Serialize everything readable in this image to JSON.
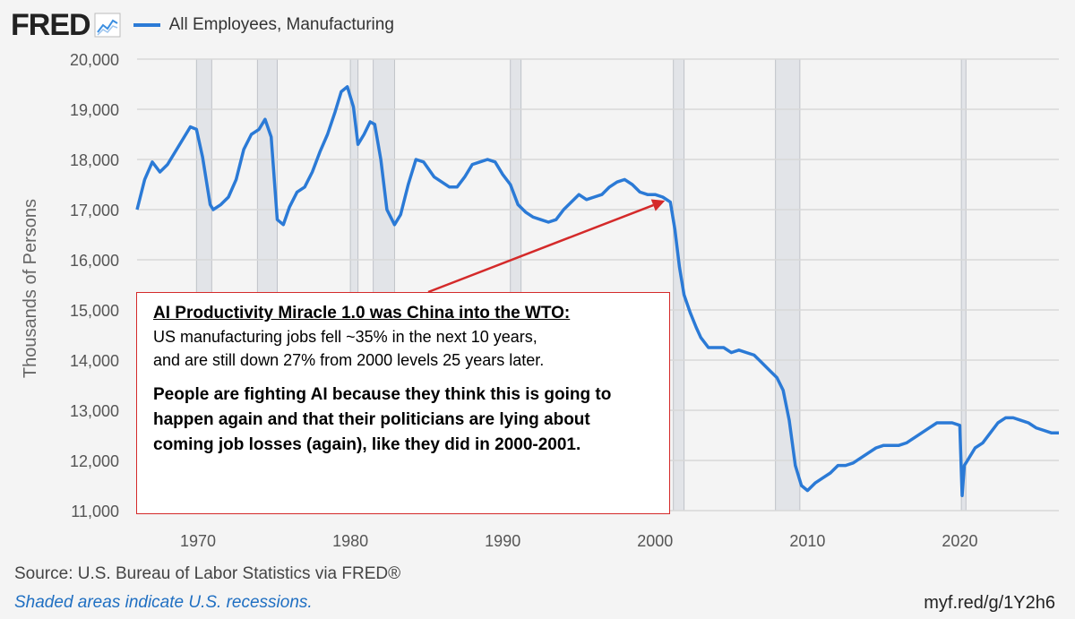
{
  "header": {
    "logo": "FRED",
    "series_label": "All Employees, Manufacturing"
  },
  "footer": {
    "source": "Source: U.S. Bureau of Labor Statistics via FRED®",
    "note": "Shaded areas indicate U.S. recessions.",
    "link": "myf.red/g/1Y2h6"
  },
  "annotation": {
    "headline": "AI Productivity Miracle 1.0 was China into the WTO:",
    "body_line1": "US manufacturing jobs fell ~35% in the next 10 years,",
    "body_line2": "and are still down 27% from 2000 levels 25 years later.",
    "callout": "People are fighting AI because they think this is going to happen again and that their politicians are lying about coming job losses (again), like they did in 2000-2001.",
    "arrow_target": [
      2001.0,
      17250
    ]
  },
  "colors": {
    "line": "#2b7ad6",
    "recession": "#e2e4e8",
    "grid": "#d8d8d8",
    "annotation_border": "#d42a2a",
    "arrow": "#d42a2a"
  },
  "chart_data": {
    "type": "line",
    "title": "",
    "ylabel": "Thousands of Persons",
    "xlabel": "",
    "xlim": [
      1966.0,
      2026.5
    ],
    "ylim": [
      11000,
      20000
    ],
    "x_ticks": [
      1970,
      1980,
      1990,
      2000,
      2010,
      2020
    ],
    "y_ticks": [
      11000,
      12000,
      13000,
      14000,
      15000,
      16000,
      17000,
      18000,
      19000,
      20000
    ],
    "y_tick_labels": [
      "11,000",
      "12,000",
      "13,000",
      "14,000",
      "15,000",
      "16,000",
      "17,000",
      "18,000",
      "19,000",
      "20,000"
    ],
    "grid": true,
    "legend": "top-left",
    "recessions": [
      [
        1969.9,
        1970.9
      ],
      [
        1973.9,
        1975.2
      ],
      [
        1980.0,
        1980.5
      ],
      [
        1981.5,
        1982.9
      ],
      [
        1990.5,
        1991.2
      ],
      [
        2001.2,
        2001.9
      ],
      [
        2007.9,
        2009.5
      ],
      [
        2020.1,
        2020.4
      ]
    ],
    "series": [
      {
        "name": "All Employees, Manufacturing",
        "x": [
          1966.0,
          1966.5,
          1967.0,
          1967.5,
          1968.0,
          1968.5,
          1969.0,
          1969.5,
          1969.9,
          1970.3,
          1970.8,
          1971.0,
          1971.5,
          1972.0,
          1972.5,
          1973.0,
          1973.5,
          1974.0,
          1974.4,
          1974.8,
          1975.2,
          1975.6,
          1976.0,
          1976.5,
          1977.0,
          1977.5,
          1978.0,
          1978.5,
          1979.0,
          1979.4,
          1979.8,
          1980.2,
          1980.5,
          1980.9,
          1981.3,
          1981.6,
          1982.0,
          1982.4,
          1982.9,
          1983.3,
          1983.8,
          1984.3,
          1984.8,
          1985.5,
          1986.0,
          1986.5,
          1987.0,
          1987.5,
          1988.0,
          1988.5,
          1989.0,
          1989.5,
          1990.0,
          1990.5,
          1991.0,
          1991.5,
          1992.0,
          1992.5,
          1993.0,
          1993.5,
          1994.0,
          1994.5,
          1995.0,
          1995.5,
          1996.0,
          1996.5,
          1997.0,
          1997.5,
          1998.0,
          1998.5,
          1999.0,
          1999.5,
          2000.0,
          2000.5,
          2001.0,
          2001.3,
          2001.6,
          2001.9,
          2002.3,
          2002.7,
          2003.0,
          2003.5,
          2004.0,
          2004.5,
          2005.0,
          2005.5,
          2006.0,
          2006.5,
          2007.0,
          2007.5,
          2008.0,
          2008.4,
          2008.8,
          2009.2,
          2009.6,
          2010.0,
          2010.5,
          2011.0,
          2011.5,
          2012.0,
          2012.5,
          2013.0,
          2013.5,
          2014.0,
          2014.5,
          2015.0,
          2015.5,
          2016.0,
          2016.5,
          2017.0,
          2017.5,
          2018.0,
          2018.5,
          2019.0,
          2019.5,
          2020.0,
          2020.15,
          2020.3,
          2020.5,
          2020.8,
          2021.0,
          2021.5,
          2022.0,
          2022.5,
          2023.0,
          2023.5,
          2024.0,
          2024.5,
          2025.0,
          2025.5,
          2026.0,
          2026.5
        ],
        "values": [
          17000,
          17600,
          17950,
          17750,
          17900,
          18150,
          18400,
          18650,
          18600,
          18050,
          17100,
          17000,
          17100,
          17250,
          17600,
          18200,
          18500,
          18600,
          18800,
          18450,
          16800,
          16700,
          17050,
          17350,
          17450,
          17750,
          18150,
          18500,
          18950,
          19350,
          19450,
          19050,
          18300,
          18500,
          18750,
          18700,
          18000,
          17000,
          16700,
          16900,
          17500,
          18000,
          17950,
          17650,
          17550,
          17450,
          17450,
          17650,
          17900,
          17950,
          18000,
          17950,
          17700,
          17500,
          17100,
          16950,
          16850,
          16800,
          16750,
          16800,
          17000,
          17150,
          17300,
          17200,
          17250,
          17300,
          17450,
          17550,
          17600,
          17500,
          17350,
          17300,
          17300,
          17250,
          17150,
          16600,
          15850,
          15300,
          14950,
          14650,
          14450,
          14250,
          14250,
          14250,
          14150,
          14200,
          14150,
          14100,
          13950,
          13800,
          13650,
          13400,
          12800,
          11900,
          11500,
          11400,
          11550,
          11650,
          11750,
          11900,
          11900,
          11950,
          12050,
          12150,
          12250,
          12300,
          12300,
          12300,
          12350,
          12450,
          12550,
          12650,
          12750,
          12750,
          12750,
          12700,
          11300,
          11900,
          12000,
          12150,
          12250,
          12350,
          12550,
          12750,
          12850,
          12850,
          12800,
          12750,
          12650,
          12600,
          12550,
          12550
        ]
      }
    ]
  }
}
